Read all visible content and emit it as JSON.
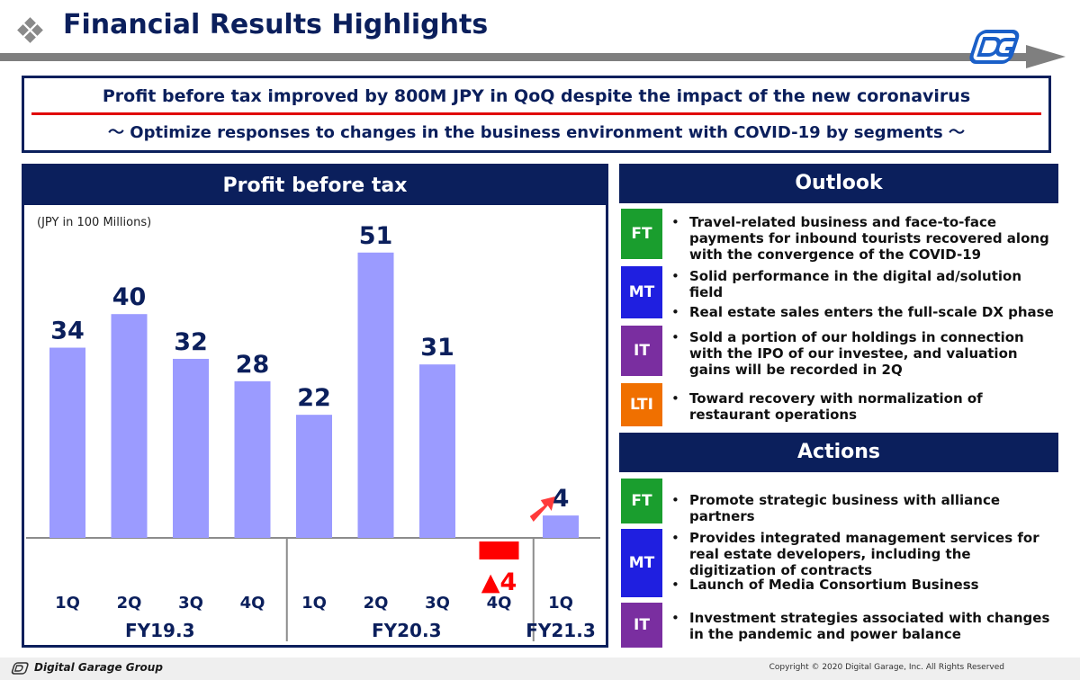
{
  "header": {
    "title": "Financial Results Highlights"
  },
  "summary": {
    "headline": "Profit before tax improved by 800M JPY in QoQ despite the impact of the new coronavirus",
    "subline": "～ Optimize responses to changes in the business environment with COVID-19 by segments ～"
  },
  "chart_panel": {
    "title": "Profit before tax",
    "unit": "(JPY in 100 Millions)"
  },
  "chart_data": {
    "type": "bar",
    "title": "Profit before tax",
    "ylabel": "(JPY in 100 Millions)",
    "categories": [
      "1Q",
      "2Q",
      "3Q",
      "4Q",
      "1Q",
      "2Q",
      "3Q",
      "4Q",
      "1Q"
    ],
    "groups": [
      {
        "label": "FY19.3",
        "categories": [
          "1Q",
          "2Q",
          "3Q",
          "4Q"
        ]
      },
      {
        "label": "FY20.3",
        "categories": [
          "1Q",
          "2Q",
          "3Q",
          "4Q"
        ]
      },
      {
        "label": "FY21.3",
        "categories": [
          "1Q"
        ]
      }
    ],
    "values": [
      34,
      40,
      32,
      28,
      22,
      51,
      31,
      -4,
      4
    ],
    "value_labels": [
      "34",
      "40",
      "32",
      "28",
      "22",
      "51",
      "31",
      "▲4",
      "4"
    ],
    "bar_color": "#9b9bff",
    "negative_color": "#ff0000",
    "negative_label_color": "#ff0000",
    "value_label_color": "#0b1f5c",
    "ylim": [
      -4,
      51
    ],
    "grid": false
  },
  "outlook": {
    "title": "Outlook",
    "segments": [
      {
        "badge": "FT",
        "color": "#1a9e2e",
        "bullets": [
          "Travel-related business and face-to-face payments for inbound tourists recovered along with the convergence of the COVID-19"
        ]
      },
      {
        "badge": "MT",
        "color": "#1f1fe0",
        "bullets": [
          "Solid performance in the digital ad/solution field",
          "Real estate sales enters the full-scale DX phase"
        ]
      },
      {
        "badge": "IT",
        "color": "#7a2ea0",
        "bullets": [
          "Sold a portion of our holdings in connection with the IPO of our investee, and valuation gains will be recorded in 2Q"
        ]
      },
      {
        "badge": "LTI",
        "color": "#f07000",
        "bullets": [
          "Toward recovery with normalization of restaurant operations"
        ]
      }
    ]
  },
  "actions": {
    "title": "Actions",
    "segments": [
      {
        "badge": "FT",
        "color": "#1a9e2e",
        "bullets": [
          "Promote strategic business with alliance partners"
        ]
      },
      {
        "badge": "MT",
        "color": "#1f1fe0",
        "bullets": [
          "Provides integrated management services for real estate developers, including the digitization of contracts",
          "Launch of Media Consortium Business"
        ]
      },
      {
        "badge": "IT",
        "color": "#7a2ea0",
        "bullets": [
          "Investment strategies associated with changes in the pandemic and power balance"
        ]
      }
    ]
  },
  "footer": {
    "company": "Digital Garage Group",
    "copyright": "Copyright © 2020 Digital Garage, Inc. All Rights Reserved"
  }
}
